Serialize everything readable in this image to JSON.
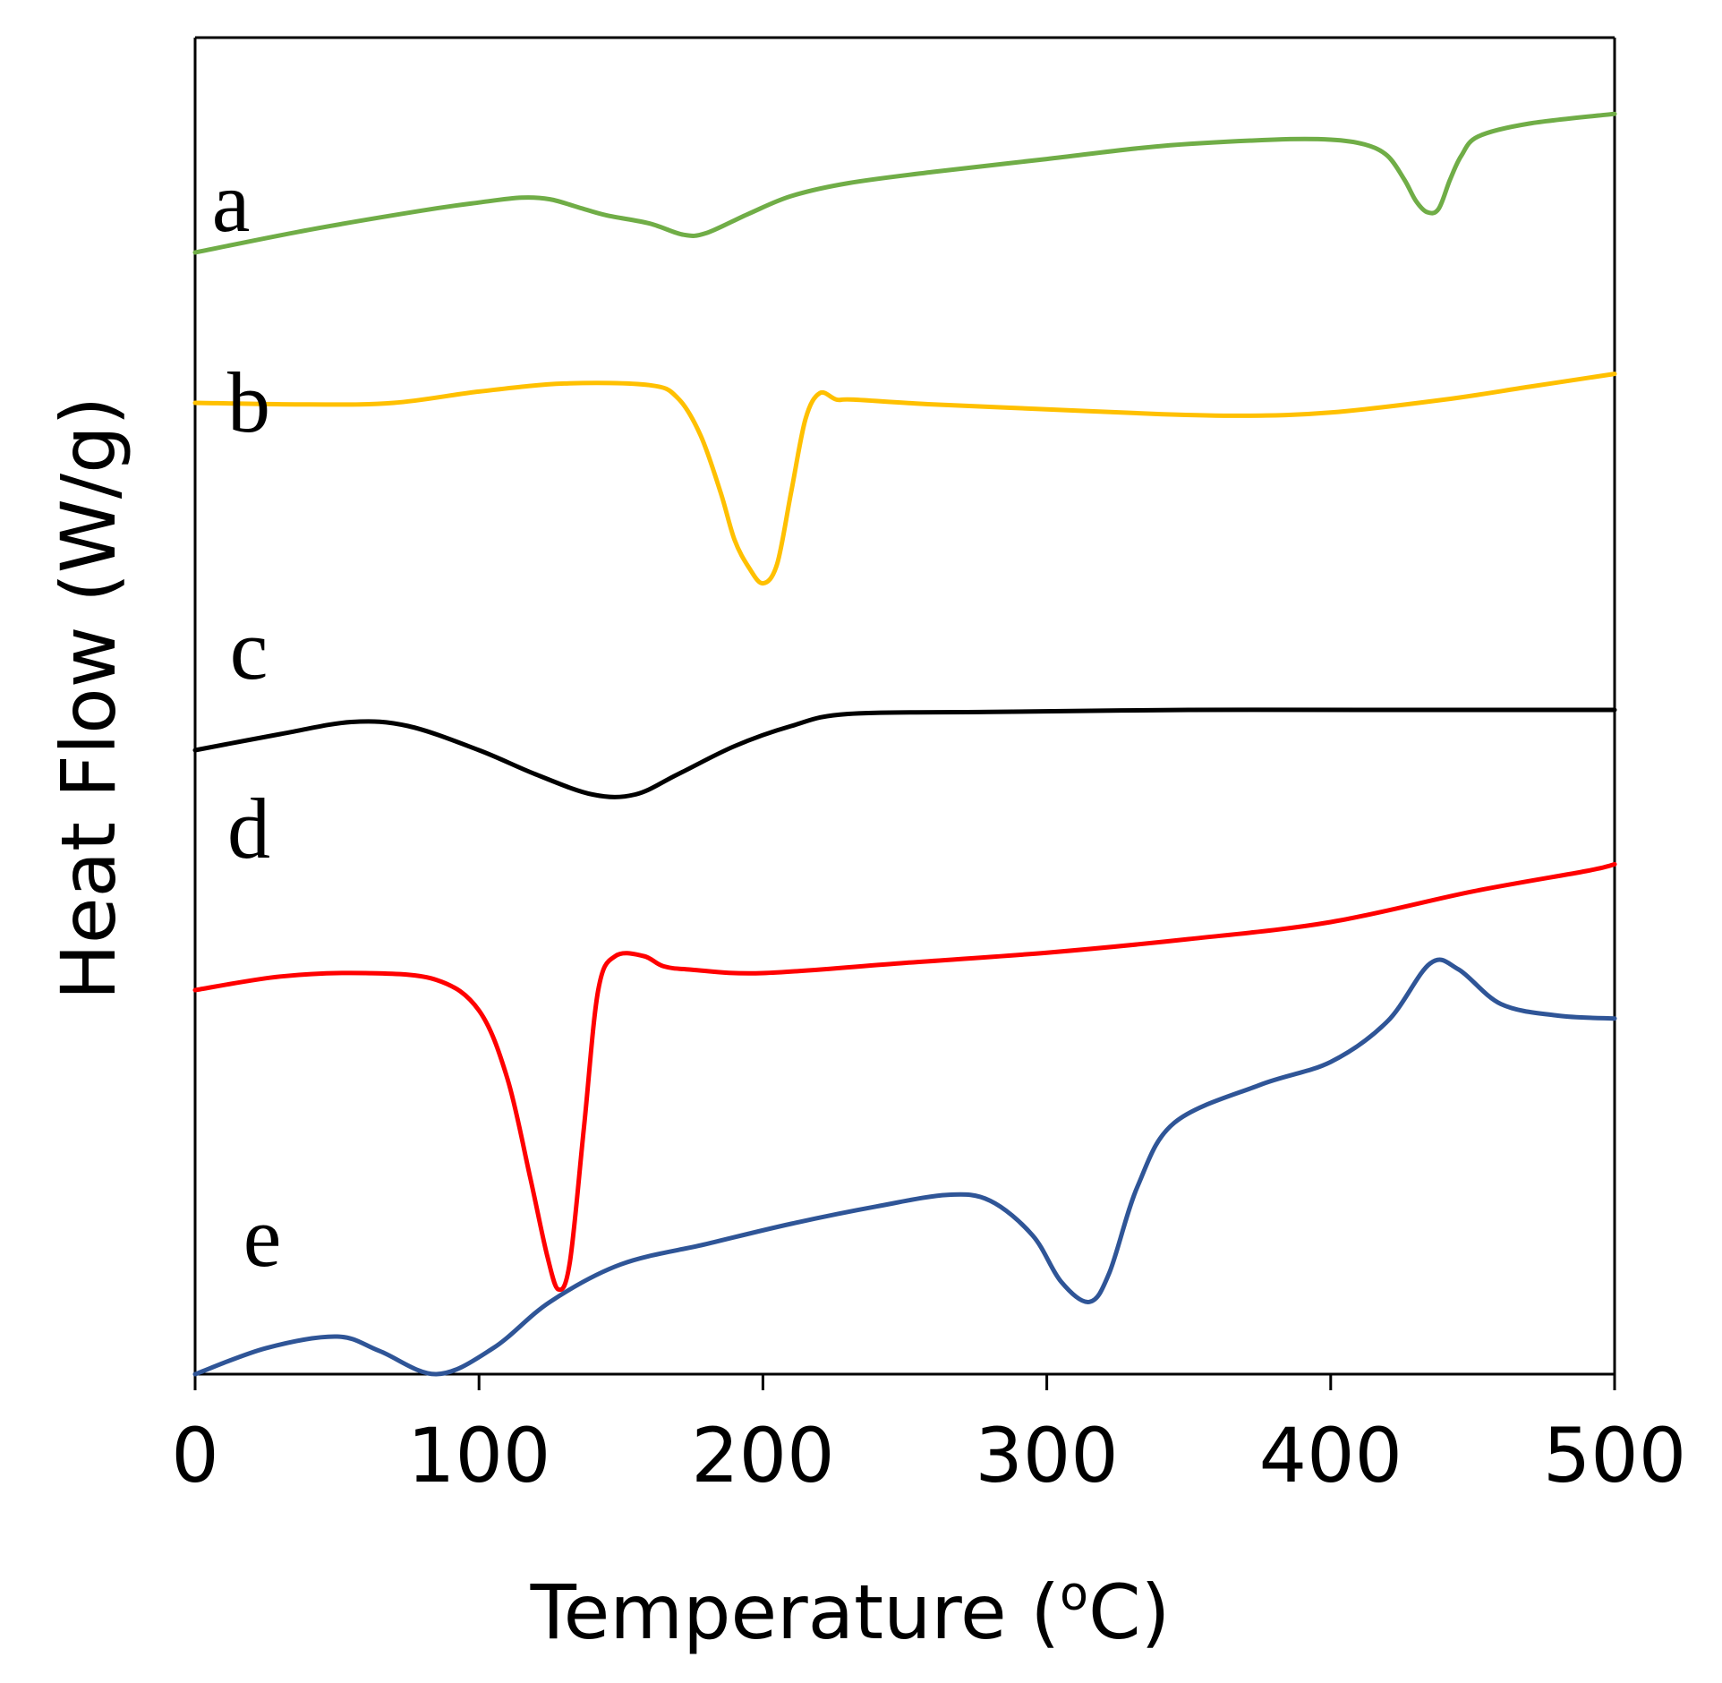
{
  "chart_data": {
    "type": "line",
    "title": "",
    "xlabel": "Temperature (",
    "xlabel_sup": "o",
    "xlabel_end": "C)",
    "ylabel": "Heat Flow (W/g)",
    "xlim": [
      0,
      500
    ],
    "x_ticks": [
      {
        "value": 0,
        "label": "0"
      },
      {
        "value": 100,
        "label": "100"
      },
      {
        "value": 200,
        "label": "200"
      },
      {
        "value": 300,
        "label": "300"
      },
      {
        "value": 400,
        "label": "400"
      },
      {
        "value": 500,
        "label": "500"
      }
    ],
    "y_ticks_visible": false,
    "grid": false,
    "series": [
      {
        "name": "a",
        "color": "#70ad47",
        "note": "relative heat flow (arbitrary units, higher = up)",
        "points": [
          [
            0,
            0.6
          ],
          [
            40,
            0.74
          ],
          [
            80,
            0.86
          ],
          [
            100,
            0.91
          ],
          [
            115,
            0.94
          ],
          [
            125,
            0.93
          ],
          [
            135,
            0.88
          ],
          [
            145,
            0.83
          ],
          [
            160,
            0.78
          ],
          [
            172,
            0.71
          ],
          [
            180,
            0.72
          ],
          [
            195,
            0.84
          ],
          [
            210,
            0.95
          ],
          [
            230,
            1.03
          ],
          [
            260,
            1.1
          ],
          [
            300,
            1.18
          ],
          [
            340,
            1.26
          ],
          [
            380,
            1.3
          ],
          [
            400,
            1.3
          ],
          [
            412,
            1.27
          ],
          [
            420,
            1.2
          ],
          [
            426,
            1.05
          ],
          [
            430,
            0.92
          ],
          [
            434,
            0.85
          ],
          [
            438,
            0.87
          ],
          [
            442,
            1.05
          ],
          [
            446,
            1.2
          ],
          [
            452,
            1.32
          ],
          [
            470,
            1.4
          ],
          [
            500,
            1.46
          ]
        ]
      },
      {
        "name": "b",
        "color": "#ffc000",
        "note": "relative heat flow (arbitrary units, higher = up)",
        "points": [
          [
            0,
            0.5
          ],
          [
            40,
            0.49
          ],
          [
            70,
            0.5
          ],
          [
            100,
            0.57
          ],
          [
            130,
            0.62
          ],
          [
            160,
            0.61
          ],
          [
            170,
            0.53
          ],
          [
            178,
            0.3
          ],
          [
            185,
            -0.05
          ],
          [
            190,
            -0.35
          ],
          [
            195,
            -0.52
          ],
          [
            200,
            -0.62
          ],
          [
            205,
            -0.5
          ],
          [
            210,
            -0.05
          ],
          [
            215,
            0.4
          ],
          [
            220,
            0.56
          ],
          [
            226,
            0.52
          ],
          [
            232,
            0.52
          ],
          [
            260,
            0.49
          ],
          [
            300,
            0.46
          ],
          [
            340,
            0.43
          ],
          [
            370,
            0.42
          ],
          [
            400,
            0.44
          ],
          [
            440,
            0.52
          ],
          [
            470,
            0.6
          ],
          [
            500,
            0.68
          ]
        ]
      },
      {
        "name": "c",
        "color": "#000000",
        "note": "relative heat flow (arbitrary units, higher = up)",
        "points": [
          [
            0,
            0.0
          ],
          [
            30,
            0.04
          ],
          [
            55,
            0.07
          ],
          [
            75,
            0.06
          ],
          [
            100,
            0.0
          ],
          [
            120,
            -0.06
          ],
          [
            140,
            -0.11
          ],
          [
            155,
            -0.11
          ],
          [
            170,
            -0.06
          ],
          [
            190,
            0.01
          ],
          [
            210,
            0.06
          ],
          [
            230,
            0.09
          ],
          [
            280,
            0.095
          ],
          [
            350,
            0.1
          ],
          [
            420,
            0.1
          ],
          [
            500,
            0.1
          ]
        ]
      },
      {
        "name": "d",
        "color": "#ff0000",
        "note": "relative heat flow (arbitrary units, higher = up)",
        "points": [
          [
            0,
            0.0
          ],
          [
            30,
            0.04
          ],
          [
            60,
            0.05
          ],
          [
            85,
            0.03
          ],
          [
            100,
            -0.06
          ],
          [
            110,
            -0.26
          ],
          [
            118,
            -0.55
          ],
          [
            124,
            -0.78
          ],
          [
            128,
            -0.88
          ],
          [
            132,
            -0.8
          ],
          [
            137,
            -0.4
          ],
          [
            142,
            0.0
          ],
          [
            148,
            0.1
          ],
          [
            158,
            0.1
          ],
          [
            165,
            0.07
          ],
          [
            175,
            0.06
          ],
          [
            200,
            0.05
          ],
          [
            250,
            0.08
          ],
          [
            300,
            0.11
          ],
          [
            350,
            0.15
          ],
          [
            400,
            0.2
          ],
          [
            450,
            0.29
          ],
          [
            490,
            0.35
          ],
          [
            500,
            0.37
          ]
        ]
      },
      {
        "name": "e",
        "color": "#2f5597",
        "note": "relative heat flow (arbitrary units, higher = up)",
        "points": [
          [
            0,
            0.0
          ],
          [
            25,
            0.09
          ],
          [
            50,
            0.13
          ],
          [
            65,
            0.08
          ],
          [
            85,
            0.0
          ],
          [
            105,
            0.09
          ],
          [
            125,
            0.25
          ],
          [
            150,
            0.38
          ],
          [
            180,
            0.45
          ],
          [
            210,
            0.52
          ],
          [
            240,
            0.58
          ],
          [
            265,
            0.62
          ],
          [
            280,
            0.6
          ],
          [
            295,
            0.48
          ],
          [
            305,
            0.32
          ],
          [
            315,
            0.25
          ],
          [
            322,
            0.35
          ],
          [
            332,
            0.65
          ],
          [
            345,
            0.87
          ],
          [
            375,
            1.0
          ],
          [
            400,
            1.08
          ],
          [
            420,
            1.22
          ],
          [
            435,
            1.42
          ],
          [
            445,
            1.4
          ],
          [
            460,
            1.28
          ],
          [
            480,
            1.24
          ],
          [
            500,
            1.23
          ]
        ]
      }
    ]
  }
}
